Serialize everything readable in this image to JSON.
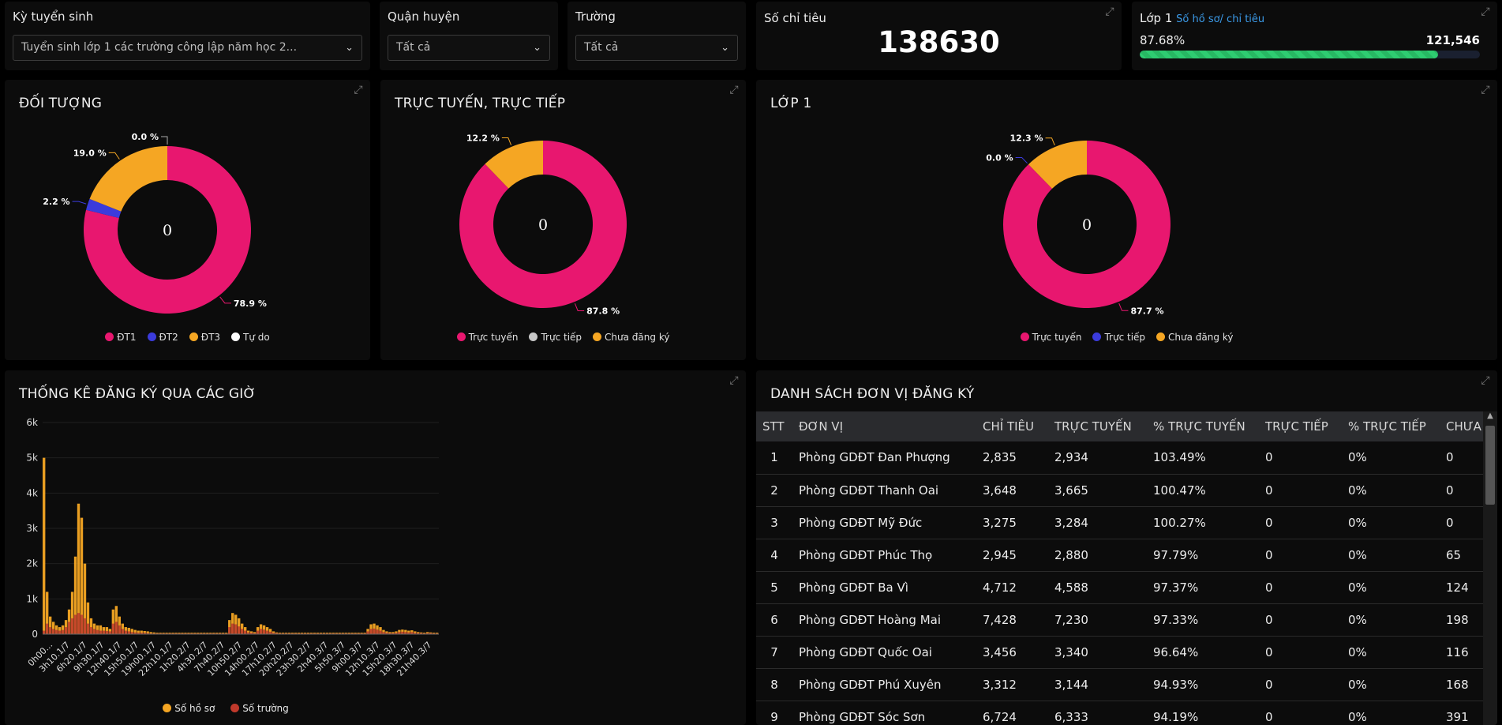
{
  "filters": {
    "ky_tuyen_sinh": {
      "label": "Kỳ tuyển sinh",
      "value": "Tuyển sinh lớp 1 các trường công lập năm học 2..."
    },
    "quan_huyen": {
      "label": "Quận huyện",
      "value": "Tất cả"
    },
    "truong": {
      "label": "Trường",
      "value": "Tất cả"
    }
  },
  "so_chi_tieu": {
    "label": "Số chỉ tiêu",
    "value": "138630"
  },
  "lop1_progress": {
    "title": "Lớp 1",
    "subtitle": "Số hồ sơ/ chỉ tiêu",
    "percent_label": "87.68%",
    "count": "121,546",
    "fraction": 0.8768
  },
  "doi_tuong": {
    "title": "ĐỐI TƯỢNG",
    "center": "0",
    "slices": [
      {
        "name": "ĐT1",
        "value": 78.9,
        "label": "78.9 %",
        "color": "#e8176f"
      },
      {
        "name": "ĐT2",
        "value": 2.2,
        "label": "2.2 %",
        "color": "#3b3bdc"
      },
      {
        "name": "ĐT3",
        "value": 19.0,
        "label": "19.0 %",
        "color": "#f5a623"
      },
      {
        "name": "Tự do",
        "value": 0.0,
        "label": "0.0 %",
        "color": "#ffffff"
      }
    ]
  },
  "truc_tuyen": {
    "title": "TRỰC TUYẾN, TRỰC TIẾP",
    "center": "0",
    "slices": [
      {
        "name": "Trực tuyến",
        "value": 87.8,
        "label": "87.8 %",
        "color": "#e8176f"
      },
      {
        "name": "Trực tiếp",
        "value": 0.0,
        "label": "",
        "color": "#c8c8c8"
      },
      {
        "name": "Chưa đăng ký",
        "value": 12.2,
        "label": "12.2 %",
        "color": "#f5a623"
      }
    ]
  },
  "lop1_donut": {
    "title": "LỚP 1",
    "center": "0",
    "slices": [
      {
        "name": "Trực tuyến",
        "value": 87.7,
        "label": "87.7 %",
        "color": "#e8176f"
      },
      {
        "name": "Trực tiếp",
        "value": 0.0,
        "label": "0.0 %",
        "color": "#3b3bdc"
      },
      {
        "name": "Chưa đăng ký",
        "value": 12.3,
        "label": "12.3 %",
        "color": "#f5a623"
      }
    ]
  },
  "chart_data": {
    "type": "bar",
    "title": "THỐNG KÊ ĐĂNG KÝ QUA CÁC GIỜ",
    "ylim": [
      0,
      6000
    ],
    "yticks": [
      "0",
      "1k",
      "2k",
      "3k",
      "4k",
      "5k",
      "6k"
    ],
    "xticks": [
      "0h00...",
      "3h10.1/7",
      "6h20.1/7",
      "9h30.1/7",
      "12h40.1/7",
      "15h50.1/7",
      "19h00.1/7",
      "22h10.1/7",
      "1h20.2/7",
      "4h30.2/7",
      "7h40.2/7",
      "10h50.2/7",
      "14h00.2/7",
      "17h10.2/7",
      "20h20.2/7",
      "23h30.2/7",
      "2h40.3/7",
      "5h50.3/7",
      "9h00.3/7",
      "12h10.3/7",
      "15h20.3/7",
      "18h30.3/7",
      "21h40.3/7"
    ],
    "series": [
      {
        "name": "Số hồ sơ",
        "color": "#f5a623",
        "values": [
          5000,
          1200,
          500,
          350,
          250,
          200,
          250,
          400,
          700,
          1200,
          2200,
          3700,
          3300,
          2000,
          900,
          450,
          300,
          250,
          250,
          200,
          200,
          150,
          700,
          800,
          500,
          300,
          200,
          180,
          150,
          120,
          100,
          100,
          90,
          80,
          60,
          50,
          40,
          40,
          40,
          40,
          40,
          40,
          40,
          40,
          40,
          40,
          40,
          40,
          40,
          40,
          40,
          40,
          40,
          40,
          40,
          40,
          40,
          40,
          40,
          400,
          600,
          550,
          450,
          300,
          200,
          100,
          80,
          60,
          200,
          280,
          250,
          200,
          150,
          80,
          50,
          40,
          40,
          40,
          40,
          40,
          40,
          40,
          40,
          40,
          40,
          40,
          40,
          40,
          40,
          40,
          40,
          40,
          40,
          40,
          40,
          40,
          40,
          40,
          40,
          40,
          40,
          40,
          40,
          150,
          280,
          300,
          250,
          200,
          120,
          80,
          60,
          60,
          80,
          120,
          130,
          120,
          100,
          110,
          80,
          60,
          50,
          40,
          60,
          50,
          40,
          40
        ]
      },
      {
        "name": "Số trường",
        "color": "#c0392b",
        "values": [
          100,
          300,
          200,
          150,
          120,
          100,
          120,
          200,
          350,
          450,
          550,
          600,
          550,
          450,
          300,
          200,
          150,
          120,
          100,
          100,
          90,
          80,
          300,
          350,
          250,
          150,
          100,
          80,
          60,
          50,
          40,
          40,
          40,
          30,
          20,
          20,
          20,
          20,
          20,
          20,
          20,
          20,
          20,
          20,
          20,
          20,
          20,
          20,
          20,
          20,
          20,
          20,
          20,
          20,
          20,
          20,
          20,
          20,
          20,
          200,
          300,
          280,
          220,
          150,
          100,
          50,
          40,
          30,
          100,
          150,
          130,
          100,
          70,
          40,
          30,
          20,
          20,
          20,
          20,
          20,
          20,
          20,
          20,
          20,
          20,
          20,
          20,
          20,
          20,
          20,
          20,
          20,
          20,
          20,
          20,
          20,
          20,
          20,
          20,
          20,
          20,
          20,
          20,
          80,
          150,
          160,
          130,
          100,
          60,
          40,
          30,
          30,
          40,
          60,
          70,
          60,
          50,
          60,
          40,
          30,
          30,
          20,
          30,
          30,
          20,
          20
        ]
      }
    ]
  },
  "danh_sach": {
    "title": "DANH SÁCH ĐƠN VỊ ĐĂNG KÝ",
    "columns": [
      "STT",
      "ĐƠN VỊ",
      "CHỈ TIÊU",
      "TRỰC TUYẾN",
      "% TRỰC TUYẾN",
      "TRỰC TIẾP",
      "% TRỰC TIẾP",
      "CHƯA"
    ],
    "rows": [
      [
        "1",
        "Phòng GDĐT Đan Phượng",
        "2,835",
        "2,934",
        "103.49%",
        "0",
        "0%",
        "0"
      ],
      [
        "2",
        "Phòng GDĐT Thanh Oai",
        "3,648",
        "3,665",
        "100.47%",
        "0",
        "0%",
        "0"
      ],
      [
        "3",
        "Phòng GDĐT Mỹ Đức",
        "3,275",
        "3,284",
        "100.27%",
        "0",
        "0%",
        "0"
      ],
      [
        "4",
        "Phòng GDĐT Phúc Thọ",
        "2,945",
        "2,880",
        "97.79%",
        "0",
        "0%",
        "65"
      ],
      [
        "5",
        "Phòng GDĐT Ba Vì",
        "4,712",
        "4,588",
        "97.37%",
        "0",
        "0%",
        "124"
      ],
      [
        "6",
        "Phòng GDĐT Hoàng Mai",
        "7,428",
        "7,230",
        "97.33%",
        "0",
        "0%",
        "198"
      ],
      [
        "7",
        "Phòng GDĐT Quốc Oai",
        "3,456",
        "3,340",
        "96.64%",
        "0",
        "0%",
        "116"
      ],
      [
        "8",
        "Phòng GDĐT Phú Xuyên",
        "3,312",
        "3,144",
        "94.93%",
        "0",
        "0%",
        "168"
      ],
      [
        "9",
        "Phòng GDĐT Sóc Sơn",
        "6,724",
        "6,333",
        "94.19%",
        "0",
        "0%",
        "391"
      ]
    ]
  }
}
